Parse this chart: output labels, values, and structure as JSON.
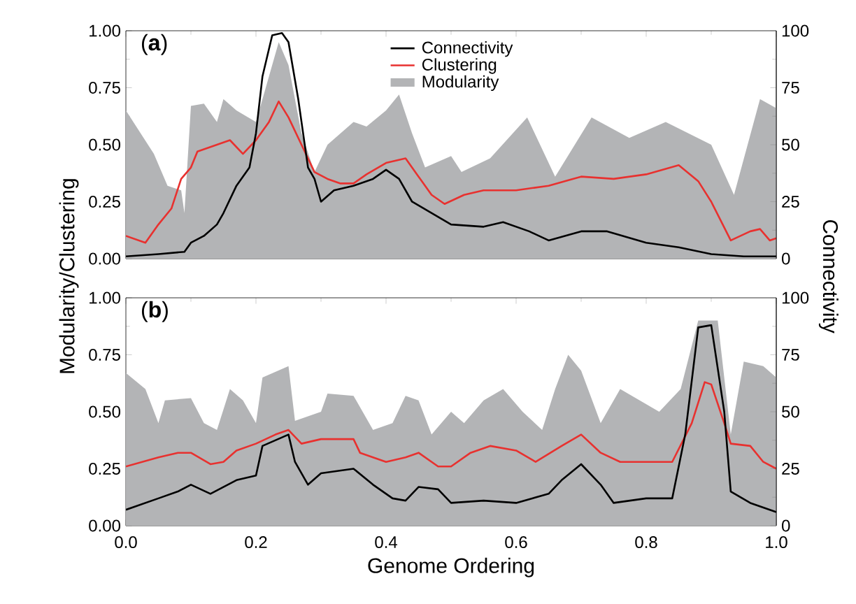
{
  "chart_data": [
    {
      "type": "line",
      "title": "(**a**)",
      "ylabel": "Modularity/Clustering",
      "y2label": "Connectivity",
      "legend": "top",
      "tick_labels": "y",
      "xlim": [
        0,
        1
      ],
      "xticks": [
        {
          "value": 0,
          "label": null
        },
        {
          "value": 0.2,
          "label": null
        },
        {
          "value": 0.4,
          "label": null
        },
        {
          "value": 0.6,
          "label": null
        },
        {
          "value": 0.8,
          "label": null
        },
        {
          "value": 1,
          "label": null
        }
      ],
      "ylim": [
        0,
        1
      ],
      "yticks": [
        {
          "value": 0,
          "label": "0.00"
        },
        {
          "value": 0.25,
          "label": "0.25"
        },
        {
          "value": 0.5,
          "label": "0.50"
        },
        {
          "value": 0.75,
          "label": "0.75"
        },
        {
          "value": 1,
          "label": "1.00"
        }
      ],
      "y2lim": [
        0,
        100
      ],
      "y2ticks": [
        0,
        25,
        50,
        75,
        100
      ],
      "series": [
        {
          "name": "Connectivity",
          "color": "#000000",
          "axis": "y2",
          "x": [
            0,
            0.05,
            0.09,
            0.1,
            0.12,
            0.14,
            0.15,
            0.17,
            0.19,
            0.2,
            0.21,
            0.225,
            0.24,
            0.25,
            0.265,
            0.28,
            0.29,
            0.3,
            0.32,
            0.35,
            0.38,
            0.4,
            0.42,
            0.44,
            0.47,
            0.5,
            0.55,
            0.58,
            0.62,
            0.65,
            0.7,
            0.74,
            0.8,
            0.85,
            0.9,
            0.95,
            1.0
          ],
          "values": [
            1,
            2,
            3,
            7,
            10,
            15,
            20,
            32,
            40,
            55,
            80,
            98,
            99,
            95,
            70,
            40,
            35,
            25,
            30,
            32,
            35,
            39,
            35,
            25,
            20,
            15,
            14,
            16,
            12,
            8,
            12,
            12,
            7,
            5,
            2,
            1,
            1
          ]
        },
        {
          "name": "Clustering",
          "color": "#e8312f",
          "x": [
            0,
            0.03,
            0.05,
            0.07,
            0.085,
            0.1,
            0.11,
            0.14,
            0.16,
            0.18,
            0.2,
            0.22,
            0.235,
            0.25,
            0.27,
            0.29,
            0.31,
            0.33,
            0.35,
            0.37,
            0.4,
            0.43,
            0.45,
            0.47,
            0.49,
            0.52,
            0.55,
            0.6,
            0.65,
            0.7,
            0.75,
            0.8,
            0.85,
            0.88,
            0.9,
            0.93,
            0.96,
            0.975,
            0.99,
            1.0
          ],
          "values": [
            0.1,
            0.07,
            0.15,
            0.22,
            0.35,
            0.4,
            0.47,
            0.5,
            0.52,
            0.46,
            0.52,
            0.6,
            0.69,
            0.62,
            0.5,
            0.38,
            0.35,
            0.33,
            0.33,
            0.37,
            0.42,
            0.44,
            0.36,
            0.28,
            0.24,
            0.28,
            0.3,
            0.3,
            0.32,
            0.36,
            0.35,
            0.37,
            0.41,
            0.34,
            0.25,
            0.08,
            0.12,
            0.13,
            0.08,
            0.09
          ]
        },
        {
          "name": "Modularity",
          "color": "#b3b4b6",
          "type": "area",
          "x": [
            0,
            0.043,
            0.064,
            0.085,
            0.09,
            0.1,
            0.12,
            0.14,
            0.15,
            0.17,
            0.2,
            0.22,
            0.235,
            0.25,
            0.27,
            0.29,
            0.31,
            0.33,
            0.35,
            0.37,
            0.4,
            0.42,
            0.44,
            0.46,
            0.5,
            0.516,
            0.56,
            0.617,
            0.66,
            0.716,
            0.774,
            0.83,
            0.9,
            0.935,
            0.975,
            1.0
          ],
          "values": [
            0.65,
            0.46,
            0.32,
            0.3,
            0.2,
            0.67,
            0.68,
            0.6,
            0.7,
            0.65,
            0.6,
            0.8,
            0.95,
            0.85,
            0.55,
            0.38,
            0.5,
            0.55,
            0.6,
            0.58,
            0.65,
            0.72,
            0.55,
            0.4,
            0.45,
            0.38,
            0.44,
            0.62,
            0.36,
            0.62,
            0.53,
            0.6,
            0.5,
            0.28,
            0.7,
            0.66
          ]
        }
      ]
    },
    {
      "type": "line",
      "title": "(**b**)",
      "xlabel": "Genome Ordering",
      "xlim": [
        0,
        1
      ],
      "xticks": [
        {
          "value": 0,
          "label": "0.0"
        },
        {
          "value": 0.2,
          "label": "0.2"
        },
        {
          "value": 0.4,
          "label": "0.4"
        },
        {
          "value": 0.6,
          "label": "0.6"
        },
        {
          "value": 0.8,
          "label": "0.8"
        },
        {
          "value": 1,
          "label": "1.0"
        }
      ],
      "ylim": [
        0,
        1
      ],
      "yticks": [
        {
          "value": 0,
          "label": "0.00"
        },
        {
          "value": 0.25,
          "label": "0.25"
        },
        {
          "value": 0.5,
          "label": "0.50"
        },
        {
          "value": 0.75,
          "label": "0.75"
        },
        {
          "value": 1,
          "label": "1.00"
        }
      ],
      "y2lim": [
        0,
        100
      ],
      "y2ticks": [
        0,
        25,
        50,
        75,
        100
      ],
      "series": [
        {
          "color": "#000000",
          "axis": "y2",
          "x": [
            0,
            0.05,
            0.08,
            0.1,
            0.13,
            0.17,
            0.2,
            0.21,
            0.25,
            0.26,
            0.28,
            0.3,
            0.35,
            0.38,
            0.41,
            0.43,
            0.45,
            0.48,
            0.5,
            0.55,
            0.6,
            0.65,
            0.67,
            0.7,
            0.73,
            0.75,
            0.8,
            0.84,
            0.86,
            0.88,
            0.9,
            0.92,
            0.93,
            0.96,
            1.0
          ],
          "values": [
            7,
            12,
            15,
            18,
            14,
            20,
            22,
            35,
            40,
            28,
            18,
            23,
            25,
            18,
            12,
            11,
            17,
            16,
            10,
            11,
            10,
            14,
            20,
            27,
            18,
            10,
            12,
            12,
            40,
            87,
            88,
            50,
            15,
            10,
            6
          ]
        },
        {
          "color": "#e8312f",
          "x": [
            0,
            0.05,
            0.08,
            0.1,
            0.13,
            0.15,
            0.17,
            0.2,
            0.23,
            0.25,
            0.27,
            0.3,
            0.35,
            0.36,
            0.4,
            0.43,
            0.45,
            0.48,
            0.5,
            0.53,
            0.56,
            0.6,
            0.63,
            0.67,
            0.7,
            0.73,
            0.76,
            0.8,
            0.84,
            0.87,
            0.89,
            0.9,
            0.92,
            0.93,
            0.96,
            0.98,
            1.0
          ],
          "values": [
            0.26,
            0.3,
            0.32,
            0.32,
            0.27,
            0.28,
            0.33,
            0.36,
            0.4,
            0.42,
            0.36,
            0.38,
            0.38,
            0.32,
            0.28,
            0.3,
            0.32,
            0.26,
            0.26,
            0.32,
            0.35,
            0.33,
            0.28,
            0.35,
            0.4,
            0.32,
            0.28,
            0.28,
            0.28,
            0.45,
            0.63,
            0.62,
            0.45,
            0.36,
            0.35,
            0.28,
            0.25
          ]
        },
        {
          "color": "#b3b4b6",
          "type": "area",
          "x": [
            0,
            0.03,
            0.05,
            0.06,
            0.1,
            0.12,
            0.14,
            0.16,
            0.18,
            0.2,
            0.21,
            0.25,
            0.26,
            0.3,
            0.31,
            0.35,
            0.38,
            0.41,
            0.43,
            0.45,
            0.47,
            0.5,
            0.52,
            0.55,
            0.58,
            0.61,
            0.64,
            0.66,
            0.68,
            0.7,
            0.73,
            0.76,
            0.79,
            0.82,
            0.853,
            0.88,
            0.91,
            0.93,
            0.95,
            0.98,
            1.0
          ],
          "values": [
            0.67,
            0.6,
            0.45,
            0.55,
            0.56,
            0.45,
            0.42,
            0.6,
            0.55,
            0.45,
            0.65,
            0.7,
            0.46,
            0.5,
            0.58,
            0.57,
            0.42,
            0.45,
            0.57,
            0.55,
            0.4,
            0.5,
            0.45,
            0.55,
            0.6,
            0.5,
            0.42,
            0.6,
            0.75,
            0.68,
            0.45,
            0.6,
            0.55,
            0.5,
            0.6,
            0.9,
            0.9,
            0.4,
            0.72,
            0.7,
            0.65
          ]
        }
      ]
    }
  ]
}
